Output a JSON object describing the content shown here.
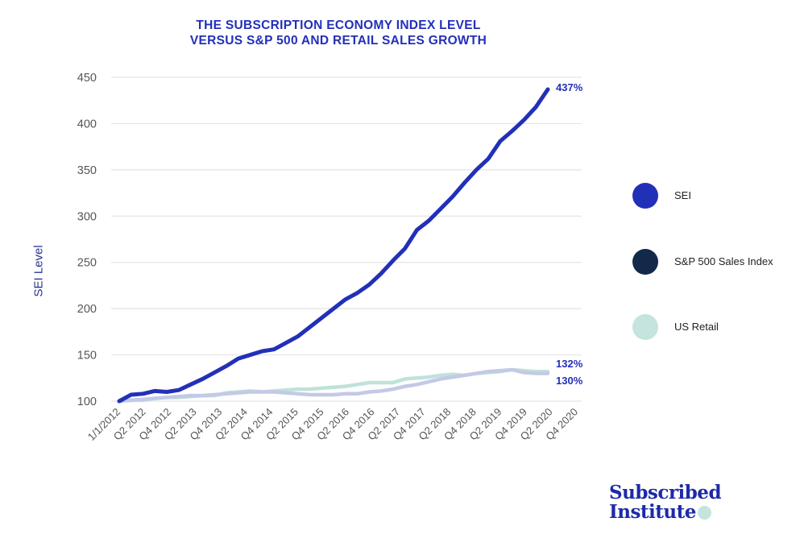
{
  "chart_data": {
    "type": "line",
    "title": "THE SUBSCRIPTION ECONOMY INDEX LEVEL VERSUS S&P 500 AND RETAIL SALES GROWTH",
    "title_lines": [
      "THE SUBSCRIPTION ECONOMY INDEX LEVEL",
      "VERSUS S&P 500 AND RETAIL SALES GROWTH"
    ],
    "xlabel": "",
    "ylabel": "SEI Level",
    "ylim": [
      100,
      450
    ],
    "yticks": [
      100,
      150,
      200,
      250,
      300,
      350,
      400,
      450
    ],
    "grid": true,
    "legend_placement": "right",
    "x_tick_labels": [
      "1/1/2012",
      "Q2 2012",
      "Q4 2012",
      "Q2 2013",
      "Q4 2013",
      "Q2 2014",
      "Q4 2014",
      "Q2 2015",
      "Q4 2015",
      "Q2 2016",
      "Q4 2016",
      "Q2 2017",
      "Q4 2017",
      "Q2 2018",
      "Q4 2018",
      "Q2 2019",
      "Q4 2019",
      "Q2 2020",
      "Q4 2020"
    ],
    "series": [
      {
        "name": "SEI",
        "color": "#2230b8",
        "end_label": "437%",
        "values": [
          100,
          107,
          108,
          111,
          110,
          112,
          118,
          124,
          131,
          138,
          146,
          150,
          154,
          156,
          163,
          170,
          180,
          190,
          200,
          210,
          217,
          226,
          238,
          252,
          265,
          285,
          295,
          308,
          321,
          336,
          350,
          362,
          381,
          392,
          404,
          418,
          437
        ]
      },
      {
        "name": "S&P 500 Sales Index",
        "color": "#12294a",
        "line_color": "#c3c9e6",
        "end_label": "130%",
        "values": [
          100,
          101,
          102,
          103,
          104,
          105,
          106,
          106,
          107,
          108,
          109,
          110,
          110,
          110,
          109,
          108,
          107,
          107,
          107,
          108,
          108,
          110,
          111,
          113,
          116,
          118,
          121,
          124,
          126,
          128,
          130,
          132,
          133,
          134,
          131,
          130,
          130
        ]
      },
      {
        "name": "US Retail",
        "color": "#c4e4dd",
        "line_color": "#bfe2da",
        "end_label": "132%",
        "values": [
          100,
          101,
          101,
          103,
          104,
          104,
          105,
          106,
          106,
          109,
          110,
          111,
          110,
          111,
          112,
          113,
          113,
          114,
          115,
          116,
          118,
          120,
          120,
          120,
          124,
          125,
          126,
          128,
          129,
          128,
          130,
          131,
          132,
          134,
          133,
          132,
          132
        ]
      }
    ]
  },
  "logo": {
    "line1": "Subscribed",
    "line2": "Institute"
  }
}
